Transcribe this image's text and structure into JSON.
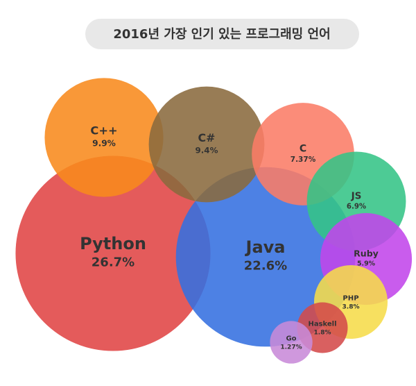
{
  "chart_data": {
    "type": "bubble",
    "title": "2016년 가장 인기 있는 프로그래밍 언어",
    "categories": [
      "Python",
      "Java",
      "C++",
      "C#",
      "C",
      "JS",
      "Ruby",
      "PHP",
      "Haskell",
      "Go"
    ],
    "values": [
      26.7,
      22.6,
      9.9,
      9.4,
      7.37,
      6.9,
      5.9,
      3.8,
      1.8,
      1.27
    ],
    "value_labels": [
      "26.7%",
      "22.6%",
      "9.9%",
      "9.4%",
      "7.37%",
      "6.9%",
      "5.9%",
      "3.8%",
      "1.8%",
      "1.27%"
    ],
    "colors": [
      "#e04444",
      "#3470e0",
      "#f88a1c",
      "#8a6a3e",
      "#fb7c66",
      "#34c486",
      "#c246ea",
      "#f6dc4a",
      "#d44a4a",
      "#c88ad8"
    ]
  }
}
